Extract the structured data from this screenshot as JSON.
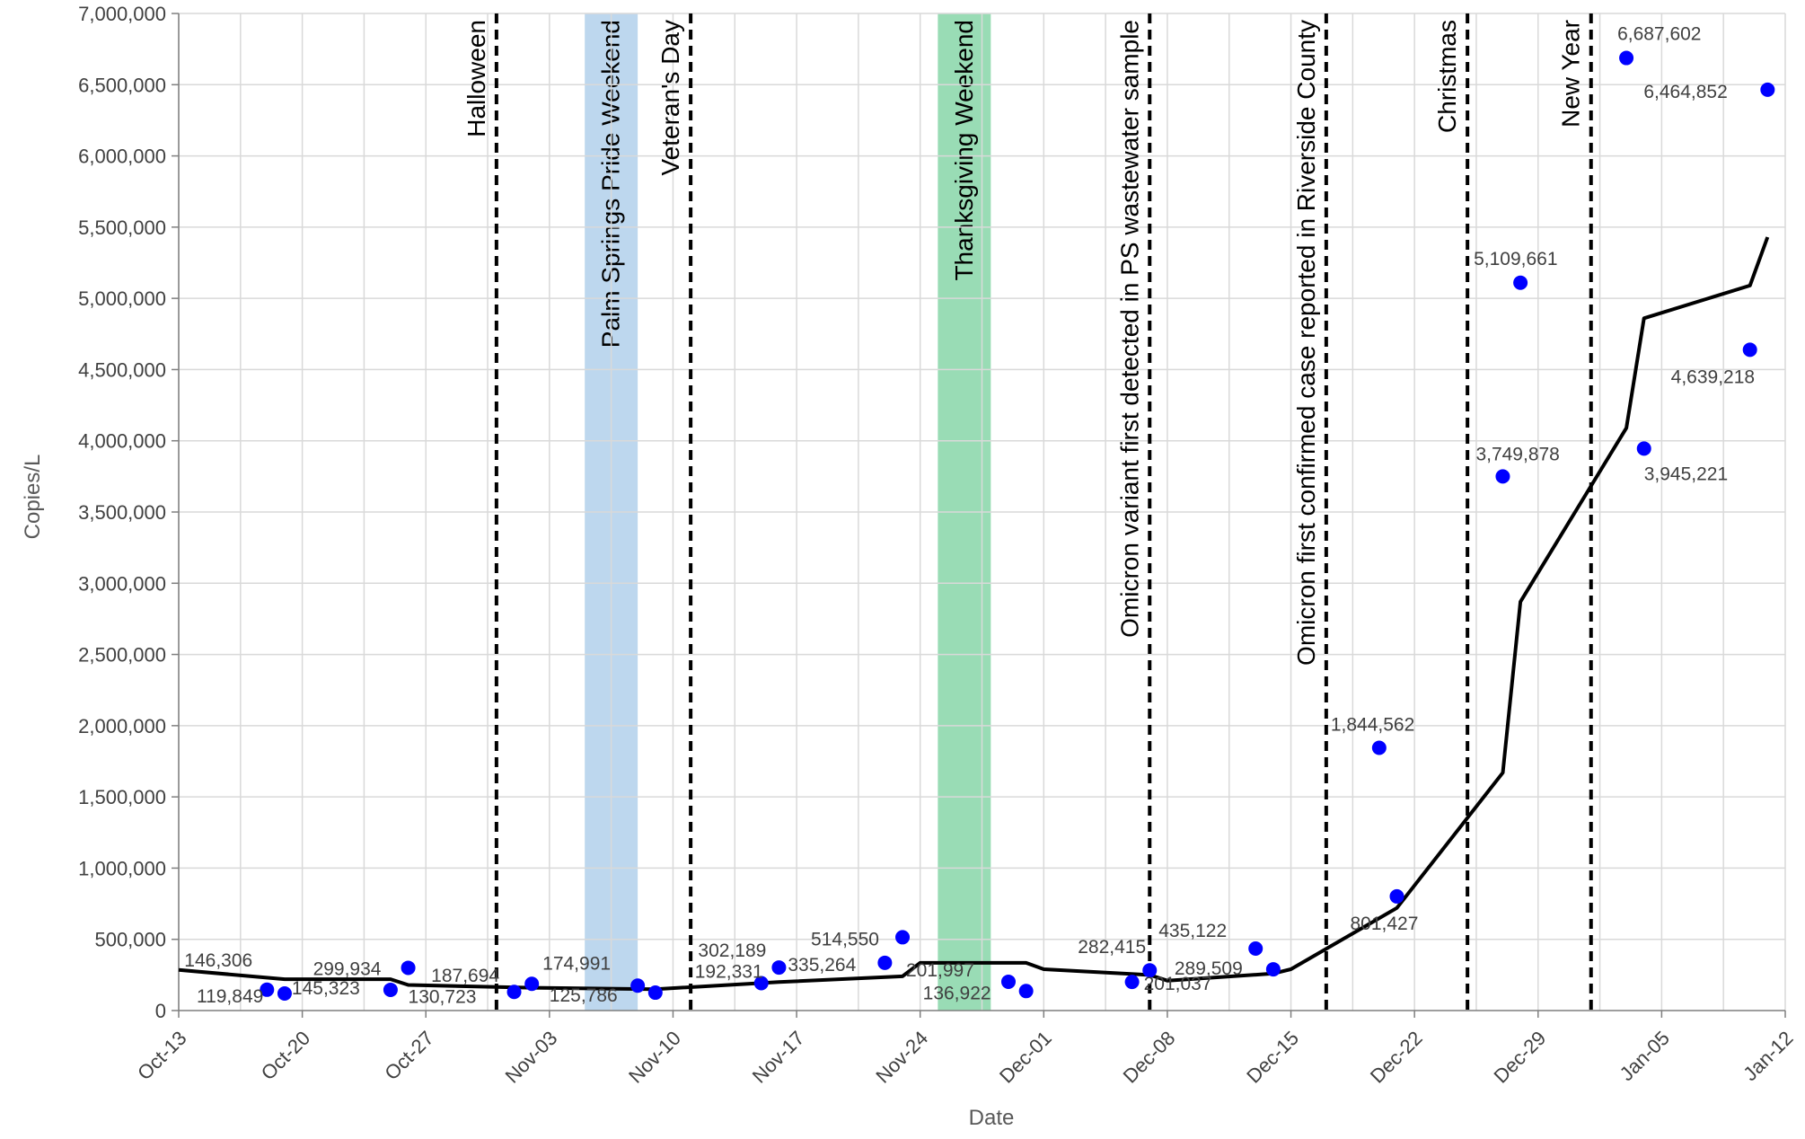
{
  "chart_data": {
    "type": "scatter",
    "xlabel": "Date",
    "ylabel": "Copies/L",
    "ylim": [
      0,
      7000000
    ],
    "xlim": [
      "2021-10-13",
      "2022-01-12"
    ],
    "grid": true,
    "y_ticks": [
      0,
      500000,
      1000000,
      1500000,
      2000000,
      2500000,
      3000000,
      3500000,
      4000000,
      4500000,
      5000000,
      5500000,
      6000000,
      6500000,
      7000000
    ],
    "y_tick_labels": [
      "0",
      "500,000",
      "1,000,000",
      "1,500,000",
      "2,000,000",
      "2,500,000",
      "3,000,000",
      "3,500,000",
      "4,000,000",
      "4,500,000",
      "5,000,000",
      "5,500,000",
      "6,000,000",
      "6,500,000",
      "7,000,000"
    ],
    "x_ticks": [
      "2021-10-13",
      "2021-10-20",
      "2021-10-27",
      "2021-11-03",
      "2021-11-10",
      "2021-11-17",
      "2021-11-24",
      "2021-12-01",
      "2021-12-08",
      "2021-12-15",
      "2021-12-22",
      "2021-12-29",
      "2022-01-05",
      "2022-01-12"
    ],
    "x_tick_labels": [
      "Oct-13",
      "Oct-20",
      "Oct-27",
      "Nov-03",
      "Nov-10",
      "Nov-17",
      "Nov-24",
      "Dec-01",
      "Dec-08",
      "Dec-15",
      "Dec-22",
      "Dec-29",
      "Jan-05",
      "Jan-12"
    ],
    "points": [
      {
        "x": "2021-10-18",
        "y": 146306,
        "label": "146,306"
      },
      {
        "x": "2021-10-19",
        "y": 119849,
        "label": "119,849"
      },
      {
        "x": "2021-10-25",
        "y": 145323,
        "label": "145,323"
      },
      {
        "x": "2021-10-26",
        "y": 299934,
        "label": "299,934"
      },
      {
        "x": "2021-11-01",
        "y": 130723,
        "label": "130,723"
      },
      {
        "x": "2021-11-02",
        "y": 187694,
        "label": "187,694"
      },
      {
        "x": "2021-11-08",
        "y": 174991,
        "label": "174,991"
      },
      {
        "x": "2021-11-09",
        "y": 125786,
        "label": "125,786"
      },
      {
        "x": "2021-11-15",
        "y": 192331,
        "label": "192,331"
      },
      {
        "x": "2021-11-16",
        "y": 302189,
        "label": "302,189"
      },
      {
        "x": "2021-11-22",
        "y": 335264,
        "label": "335,264"
      },
      {
        "x": "2021-11-23",
        "y": 514550,
        "label": "514,550"
      },
      {
        "x": "2021-11-29",
        "y": 201997,
        "label": "201,997"
      },
      {
        "x": "2021-11-30",
        "y": 136922,
        "label": "136,922"
      },
      {
        "x": "2021-12-06",
        "y": 201037,
        "label": "201,037"
      },
      {
        "x": "2021-12-07",
        "y": 282415,
        "label": "282,415"
      },
      {
        "x": "2021-12-13",
        "y": 435122,
        "label": "435,122"
      },
      {
        "x": "2021-12-14",
        "y": 289509,
        "label": "289,509"
      },
      {
        "x": "2021-12-20",
        "y": 1844562,
        "label": "1,844,562"
      },
      {
        "x": "2021-12-21",
        "y": 801427,
        "label": "801,427"
      },
      {
        "x": "2021-12-27",
        "y": 3749878,
        "label": "3,749,878"
      },
      {
        "x": "2021-12-28",
        "y": 5109661,
        "label": "5,109,661"
      },
      {
        "x": "2022-01-03",
        "y": 6687602,
        "label": "6,687,602"
      },
      {
        "x": "2022-01-04",
        "y": 3945221,
        "label": "3,945,221"
      },
      {
        "x": "2022-01-10",
        "y": 4639218,
        "label": "4,639,218"
      },
      {
        "x": "2022-01-11",
        "y": 6464852,
        "label": "6,464,852"
      }
    ],
    "trend_line": [
      {
        "x": "2021-10-13",
        "y": 285000
      },
      {
        "x": "2021-10-19",
        "y": 220000
      },
      {
        "x": "2021-10-25",
        "y": 220000
      },
      {
        "x": "2021-10-26",
        "y": 180000
      },
      {
        "x": "2021-11-02",
        "y": 160000
      },
      {
        "x": "2021-11-09",
        "y": 150000
      },
      {
        "x": "2021-11-16",
        "y": 200000
      },
      {
        "x": "2021-11-23",
        "y": 240000
      },
      {
        "x": "2021-11-24",
        "y": 335000
      },
      {
        "x": "2021-11-30",
        "y": 335000
      },
      {
        "x": "2021-12-01",
        "y": 290000
      },
      {
        "x": "2021-12-07",
        "y": 250000
      },
      {
        "x": "2021-12-08",
        "y": 210000
      },
      {
        "x": "2021-12-14",
        "y": 260000
      },
      {
        "x": "2021-12-15",
        "y": 290000
      },
      {
        "x": "2021-12-21",
        "y": 720000
      },
      {
        "x": "2021-12-27",
        "y": 1670000
      },
      {
        "x": "2021-12-28",
        "y": 2870000
      },
      {
        "x": "2022-01-03",
        "y": 4090000
      },
      {
        "x": "2022-01-04",
        "y": 4860000
      },
      {
        "x": "2022-01-10",
        "y": 5090000
      },
      {
        "x": "2022-01-11",
        "y": 5430000
      }
    ],
    "event_lines": [
      {
        "x": "2021-10-31",
        "label": "Halloween"
      },
      {
        "x": "2021-11-11",
        "label": "Veteran's Day"
      },
      {
        "x": "2021-12-07",
        "label": "Omicron variant first detected in PS wastewater sample"
      },
      {
        "x": "2021-12-17",
        "label": "Omicron first confirmed case reported in Riverside County"
      },
      {
        "x": "2021-12-25",
        "label": "Christmas"
      },
      {
        "x": "2022-01-01",
        "label": "New Year"
      }
    ],
    "shaded_periods": [
      {
        "start": "2021-11-05",
        "end": "2021-11-08",
        "label": "Palm Springs Pride Weekend",
        "color": "#bdd7ee"
      },
      {
        "start": "2021-11-25",
        "end": "2021-11-28",
        "label": "Thanksgiving Weekend",
        "color": "#99dcb5"
      }
    ],
    "colors": {
      "points": "#0000ff",
      "trend_line": "#000000",
      "grid": "#d9d9d9"
    }
  }
}
